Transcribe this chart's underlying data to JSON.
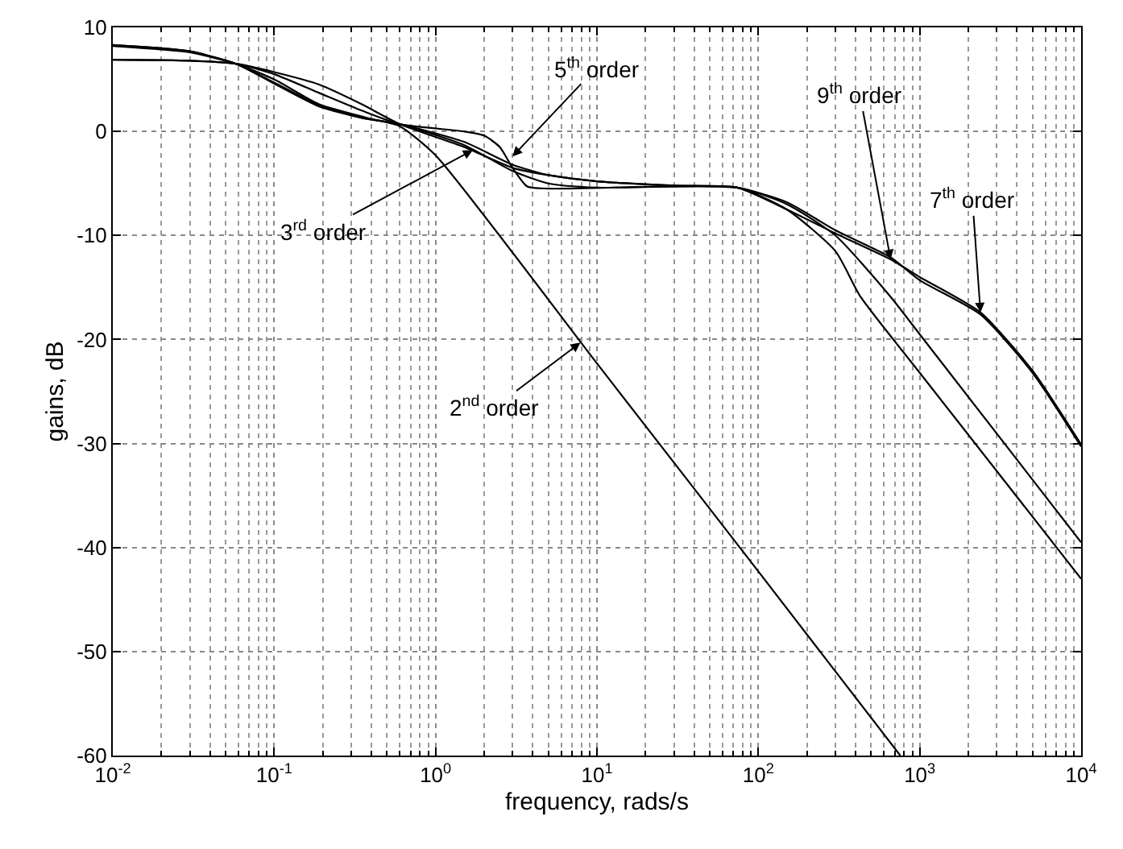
{
  "chart_data": {
    "type": "line",
    "xlabel": "frequency, rads/s",
    "ylabel": "gains, dB",
    "log": "x",
    "grid": true,
    "marker": "none",
    "line_style": "solid",
    "xlim": [
      0.01,
      10000
    ],
    "ylim": [
      -60,
      10
    ],
    "xticks": [
      {
        "value": 0.01,
        "label": "10$^{-2}$"
      },
      {
        "value": 0.1,
        "label": "10$^{-1}$"
      },
      {
        "value": 1,
        "label": "10$^{0}$"
      },
      {
        "value": 10,
        "label": "10$^{1}$"
      },
      {
        "value": 100,
        "label": "10$^{2}$"
      },
      {
        "value": 1000,
        "label": "10$^{3}$"
      },
      {
        "value": 10000,
        "label": "10$^{4}$"
      }
    ],
    "yticks": [
      -60,
      -50,
      -40,
      -30,
      -20,
      -10,
      0,
      10
    ],
    "series": [
      {
        "color": "#000000",
        "x": [
          0.01,
          0.03,
          0.058,
          0.1,
          0.19,
          0.4,
          0.6,
          1,
          10,
          100,
          758
        ],
        "values": [
          8.2,
          7.6,
          6.5,
          5.0,
          2.6,
          1.2,
          0.5,
          -2.3,
          -22.3,
          -42.3,
          -60
        ]
      },
      {
        "color": "#000000",
        "x": [
          0.01,
          0.03,
          0.058,
          0.1,
          0.19,
          0.35,
          0.6,
          1.5,
          3,
          5,
          10,
          30,
          74,
          150,
          300,
          660,
          1000,
          2380,
          5000,
          10000
        ],
        "values": [
          6.9,
          6.8,
          6.5,
          5.7,
          4.5,
          2.6,
          0.7,
          -1.5,
          -3.5,
          -4.2,
          -4.8,
          -5.2,
          -5.4,
          -7.5,
          -9.8,
          -12.3,
          -14.0,
          -17.4,
          -23.0,
          -30.1
        ]
      },
      {
        "color": "#000000",
        "x": [
          0.01,
          0.03,
          0.058,
          0.1,
          0.19,
          0.35,
          0.6,
          1.5,
          3,
          5,
          10,
          74,
          150,
          300,
          430,
          1000,
          10000
        ],
        "values": [
          8.3,
          7.7,
          6.5,
          4.6,
          2.4,
          1.3,
          0.7,
          -1.3,
          -3.8,
          -5.0,
          -5.4,
          -5.4,
          -7.5,
          -11.5,
          -15.9,
          -23.2,
          -43.0
        ]
      },
      {
        "color": "#000000",
        "x": [
          0.01,
          0.03,
          0.058,
          0.1,
          0.19,
          0.35,
          0.6,
          1.5,
          2,
          2.5,
          3,
          3.7,
          5,
          74,
          150,
          300,
          660,
          1000,
          10000
        ],
        "values": [
          6.9,
          6.8,
          6.5,
          5.5,
          3.7,
          2.0,
          0.7,
          0.0,
          -0.4,
          -1.5,
          -3.5,
          -5.3,
          -5.5,
          -5.4,
          -7.0,
          -10.0,
          -15.9,
          -19.5,
          -39.5
        ]
      },
      {
        "color": "#000000",
        "x": [
          0.01,
          0.03,
          0.058,
          0.1,
          0.19,
          0.35,
          0.6,
          1.5,
          3,
          5,
          10,
          30,
          74,
          150,
          300,
          660,
          1000,
          2380,
          5000,
          10000
        ],
        "values": [
          8.3,
          7.7,
          6.5,
          4.7,
          2.5,
          1.3,
          0.7,
          -1.0,
          -3.2,
          -4.2,
          -4.8,
          -5.2,
          -5.4,
          -6.8,
          -9.5,
          -12.1,
          -14.3,
          -17.6,
          -23.2,
          -30.3
        ]
      }
    ],
    "annotations": [
      {
        "text": "5$^{th}$ order",
        "x": 3.0,
        "y": -2.4
      },
      {
        "text": "3$^{rd}$ order",
        "x": 1.7,
        "y": -1.8
      },
      {
        "text": "2$^{nd}$ order",
        "x": 7.9,
        "y": -20.3
      },
      {
        "text": "9$^{th}$ order",
        "x": 660,
        "y": -12.3
      },
      {
        "text": "7$^{th}$ order",
        "x": 2380,
        "y": -17.4
      }
    ]
  }
}
